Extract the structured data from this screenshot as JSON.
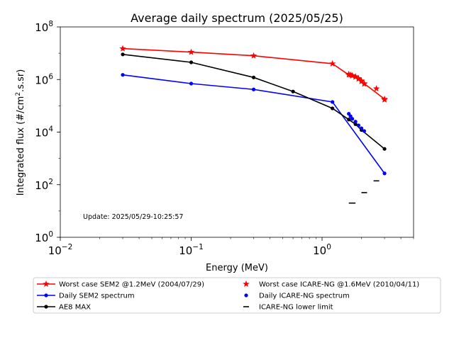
{
  "chart_data": {
    "type": "line",
    "title": "Average daily spectrum (2025/05/25)",
    "xlabel": "Energy (MeV)",
    "ylabel": "Integrated flux (#/cm",
    "ylabel_sup": "2",
    "ylabel_tail": ".s.sr)",
    "xscale": "log",
    "yscale": "log",
    "xlim": [
      0.01,
      5
    ],
    "ylim": [
      1,
      100000000
    ],
    "grid": false,
    "legend_position": "bottom",
    "xticks": [
      {
        "value": 0.01,
        "base": "10",
        "exp": "−2"
      },
      {
        "value": 0.1,
        "base": "10",
        "exp": "−1"
      },
      {
        "value": 1,
        "base": "10",
        "exp": "0"
      }
    ],
    "yticks": [
      {
        "value": 1,
        "base": "10",
        "exp": "0"
      },
      {
        "value": 100,
        "base": "10",
        "exp": "2"
      },
      {
        "value": 10000,
        "base": "10",
        "exp": "4"
      },
      {
        "value": 1000000,
        "base": "10",
        "exp": "6"
      },
      {
        "value": 100000000,
        "base": "10",
        "exp": "8"
      }
    ],
    "annotation": "Update: 2025/05/29-10:25:57",
    "series": [
      {
        "name": "Worst case SEM2 @1.2MeV (2004/07/29)",
        "color": "#ff0000",
        "marker": "star",
        "line": true,
        "x": [
          0.03,
          0.1,
          0.3,
          1.2,
          1.6,
          1.7,
          1.8,
          1.9,
          2.0,
          2.1,
          3.0
        ],
        "y": [
          15000000,
          11000000,
          8000000,
          4000000,
          1500000,
          1400000,
          1300000,
          1100000,
          900000,
          700000,
          180000
        ]
      },
      {
        "name": "Daily SEM2 spectrum",
        "color": "#0000ff",
        "marker": "dot",
        "line": true,
        "x": [
          0.03,
          0.1,
          0.3,
          1.2,
          3.0
        ],
        "y": [
          1500000,
          700000,
          420000,
          140000,
          270
        ]
      },
      {
        "name": "AE8 MAX",
        "color": "#000000",
        "marker": "dot",
        "line": true,
        "x": [
          0.03,
          0.1,
          0.3,
          0.6,
          1.2,
          1.6,
          1.8,
          2.0,
          3.0
        ],
        "y": [
          9000000,
          4500000,
          1200000,
          350000,
          80000,
          30000,
          20000,
          12000,
          2300
        ]
      },
      {
        "name": "Worst case ICARE-NG @1.6MeV (2010/04/11)",
        "color": "#ff0000",
        "marker": "star",
        "line": false,
        "x": [
          1.6,
          1.65,
          1.7,
          1.8,
          1.9,
          2.0,
          2.1,
          2.6,
          3.0
        ],
        "y": [
          1600000,
          1500000,
          1400000,
          1250000,
          1050000,
          850000,
          680000,
          450000,
          170000
        ]
      },
      {
        "name": "Daily ICARE-NG spectrum",
        "color": "#0000ff",
        "marker": "dot",
        "line": false,
        "x": [
          1.6,
          1.65,
          1.7,
          1.8,
          1.9,
          2.0,
          2.1
        ],
        "y": [
          50000,
          40000,
          32000,
          25000,
          18000,
          14000,
          11000
        ]
      },
      {
        "name": "ICARE-NG lower limit",
        "color": "#000000",
        "marker": "hline",
        "line": false,
        "x": [
          1.6,
          1.8,
          2.1,
          2.6
        ],
        "y": [
          20,
          20,
          50,
          140
        ]
      }
    ]
  }
}
